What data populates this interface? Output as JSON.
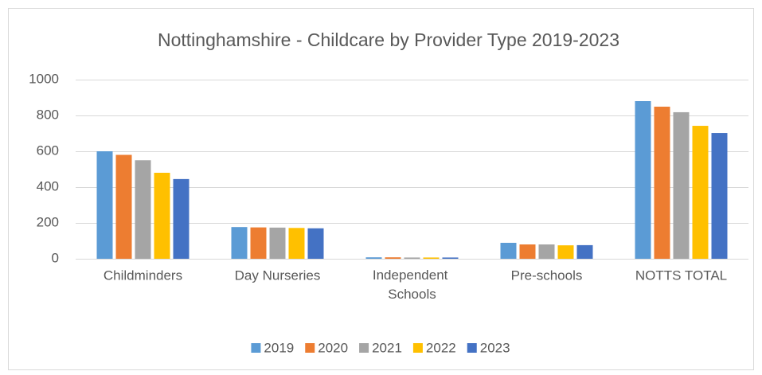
{
  "chart_data": {
    "type": "bar",
    "title": "Nottinghamshire - Childcare by Provider Type 2019-2023",
    "categories": [
      "Childminders",
      "Day Nurseries",
      "Independent Schools",
      "Pre-schools",
      "NOTTS TOTAL"
    ],
    "series": [
      {
        "name": "2019",
        "color": "#5b9bd5",
        "values": [
          600,
          177,
          8,
          89,
          880
        ]
      },
      {
        "name": "2020",
        "color": "#ed7d31",
        "values": [
          580,
          175,
          8,
          80,
          849
        ]
      },
      {
        "name": "2021",
        "color": "#a5a5a5",
        "values": [
          550,
          174,
          7,
          80,
          818
        ]
      },
      {
        "name": "2022",
        "color": "#ffc000",
        "values": [
          480,
          172,
          7,
          75,
          742
        ]
      },
      {
        "name": "2023",
        "color": "#4472c4",
        "values": [
          445,
          170,
          7,
          76,
          702
        ]
      }
    ],
    "ylim": [
      0,
      1000
    ],
    "yticks": [
      0,
      200,
      400,
      600,
      800,
      1000
    ],
    "grid": true,
    "legend": "bottom"
  }
}
